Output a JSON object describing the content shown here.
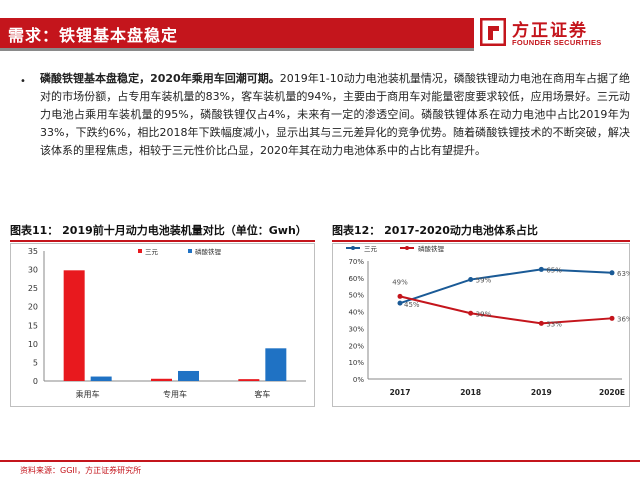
{
  "header": {
    "title": "需求：铁锂基本盘稳定",
    "logo_cn": "方正证券",
    "logo_en": "FOUNDER SECURITIES",
    "accent_color": "#c4151c"
  },
  "body": {
    "bullet": "•",
    "lead": "磷酸铁锂基本盘稳定，2020年乘用车回潮可期。",
    "text": "2019年1-10动力电池装机量情况，磷酸铁锂动力电池在商用车占据了绝对的市场份额，占专用车装机量的83%，客车装机量的94%，主要由于商用车对能量密度要求较低，应用场景好。三元动力电池占乘用车装机量的95%，磷酸铁锂仅占4%，未来有一定的渗透空间。磷酸铁锂体系在动力电池中占比2019年为33%，下跌约6%，相比2018年下跌幅度减小，显示出其与三元差异化的竞争优势。随着磷酸铁锂技术的不断突破，解决该体系的里程焦虑，相较于三元性价比凸显，2020年其在动力电池体系中的占比有望提升。"
  },
  "figures": {
    "fig11_title": "图表11：  2019前十月动力电池装机量对比（单位：Gwh）",
    "fig12_title": "图表12：  2017-2020动力电池体系占比"
  },
  "chart_data": [
    {
      "type": "bar",
      "title": "2019前十月动力电池装机量对比（单位：Gwh）",
      "categories": [
        "乘用车",
        "专用车",
        "客车"
      ],
      "series": [
        {
          "name": "三元",
          "color": "#e8191e",
          "values": [
            29.8,
            0.6,
            0.5
          ]
        },
        {
          "name": "磷酸铁锂",
          "color": "#1f72c4",
          "values": [
            1.2,
            2.7,
            8.8
          ]
        }
      ],
      "ylim": [
        0,
        35
      ],
      "yticks": [
        "0",
        "5",
        "10",
        "15",
        "20",
        "25",
        "30",
        "35"
      ],
      "legend": "top-center",
      "grid": false
    },
    {
      "type": "line",
      "title": "2017-2020动力电池体系占比",
      "categories": [
        "2017",
        "2018",
        "2019",
        "2020E"
      ],
      "series": [
        {
          "name": "三元",
          "color": "#1a5a96",
          "values": [
            45,
            59,
            65,
            63
          ],
          "labels": [
            "45%",
            "59%",
            "65%",
            "63%"
          ]
        },
        {
          "name": "磷酸铁锂",
          "color": "#c4151c",
          "values": [
            49,
            39,
            33,
            36
          ],
          "labels": [
            "49%",
            "39%",
            "33%",
            "36%"
          ]
        }
      ],
      "ylim": [
        0,
        70
      ],
      "yticks": [
        "0%",
        "10%",
        "20%",
        "30%",
        "40%",
        "50%",
        "60%",
        "70%"
      ],
      "legend": "top-left",
      "grid": false
    }
  ],
  "footer": {
    "source": "资料来源：GGII，方正证券研究所"
  }
}
